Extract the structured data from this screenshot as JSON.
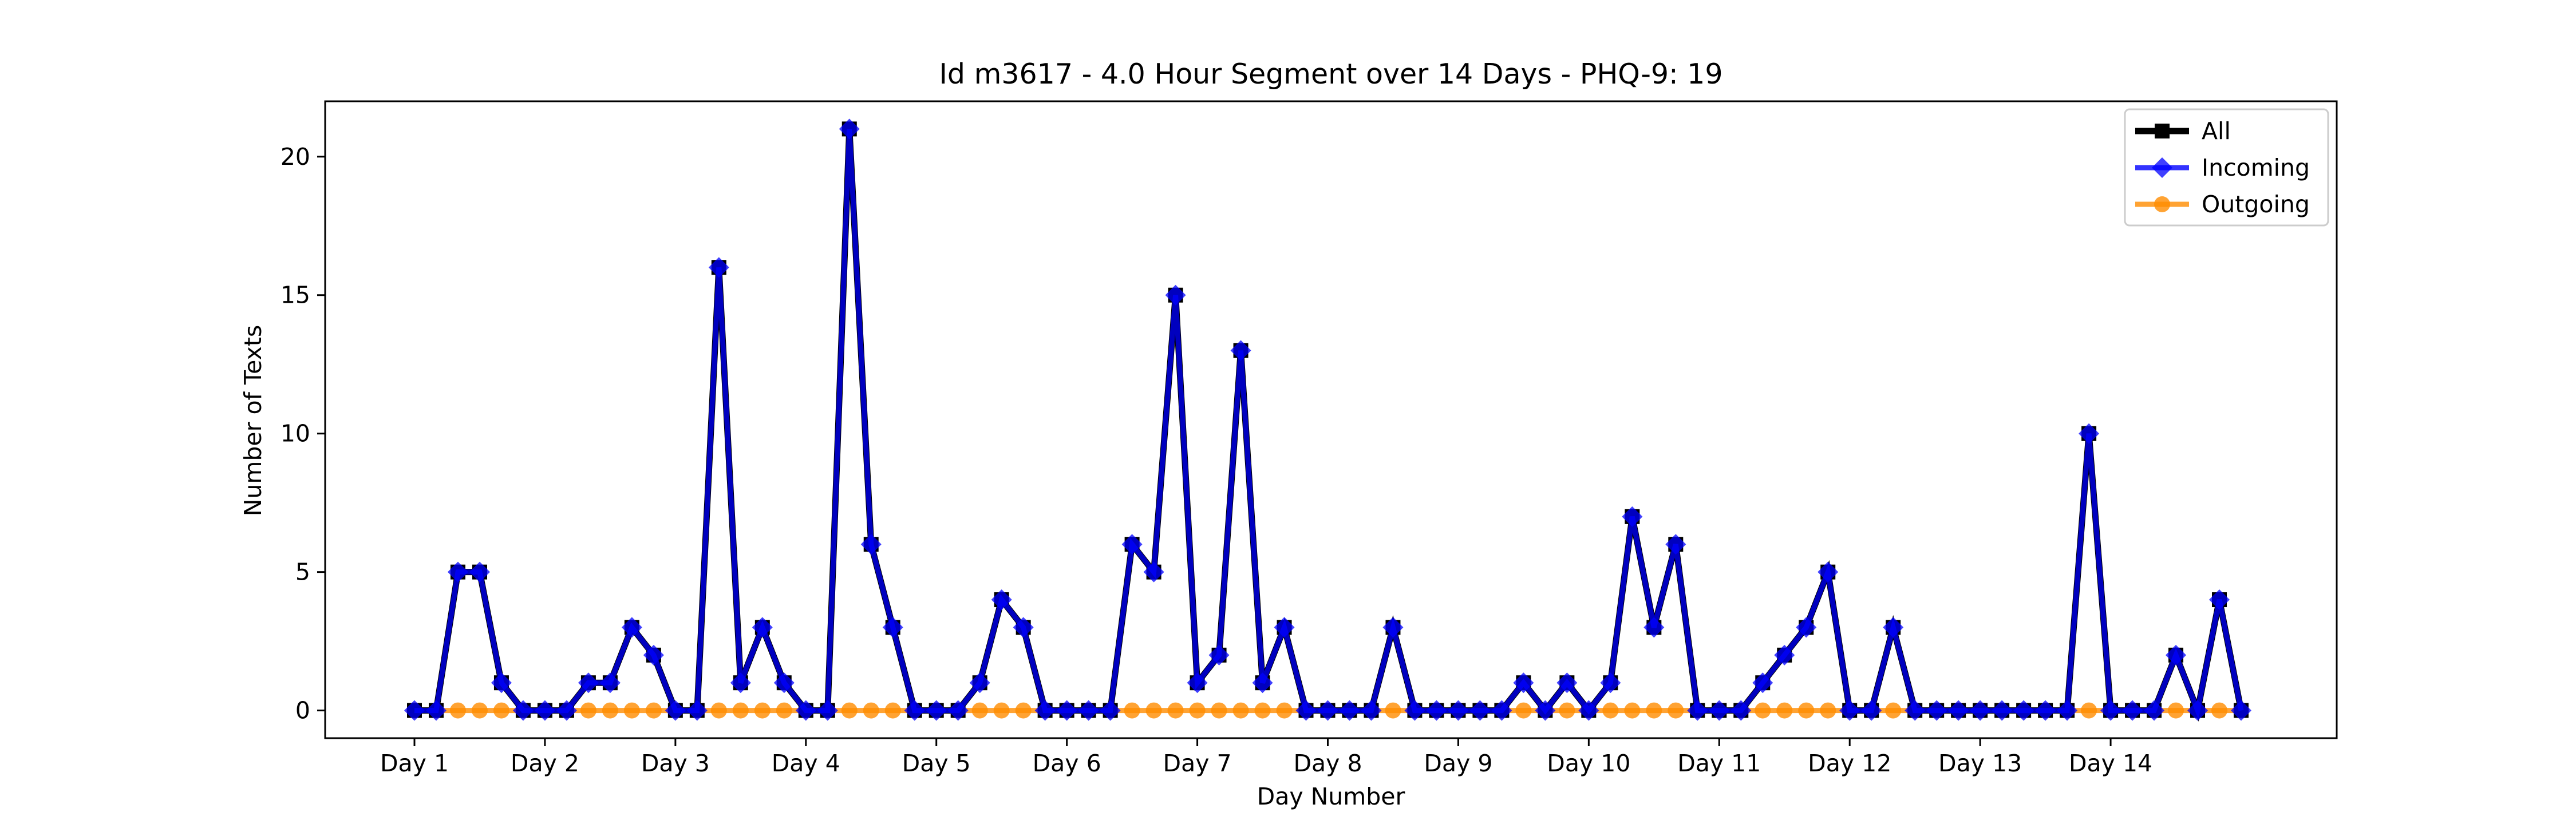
{
  "chart_data": {
    "type": "line",
    "title": "Id m3617 - 4.0 Hour Segment over 14 Days - PHQ-9: 19",
    "xlabel": "Day Number",
    "ylabel": "Number of Texts",
    "x_tick_labels": [
      "Day 1",
      "Day 2",
      "Day 3",
      "Day 4",
      "Day 5",
      "Day 6",
      "Day 7",
      "Day 8",
      "Day 9",
      "Day 10",
      "Day 11",
      "Day 12",
      "Day 13",
      "Day 14"
    ],
    "ylim": [
      -1,
      22
    ],
    "y_ticks": [
      0,
      5,
      10,
      15,
      20
    ],
    "legend_position": "top-right",
    "grid": false,
    "series": [
      {
        "name": "All",
        "color": "#000000",
        "marker": "square",
        "values": [
          0,
          0,
          5,
          5,
          1,
          0,
          0,
          0,
          1,
          1,
          3,
          2,
          0,
          0,
          16,
          1,
          3,
          1,
          0,
          0,
          21,
          6,
          3,
          0,
          0,
          0,
          1,
          4,
          3,
          0,
          0,
          0,
          0,
          6,
          5,
          15,
          1,
          2,
          13,
          1,
          3,
          0,
          0,
          0,
          0,
          3,
          0,
          0,
          0,
          0,
          0,
          1,
          0,
          1,
          0,
          1,
          7,
          3,
          6,
          0,
          0,
          0,
          1,
          2,
          3,
          5,
          0,
          0,
          3,
          0,
          0,
          0,
          0,
          0,
          0,
          0,
          0,
          10,
          0,
          0,
          0,
          2,
          0,
          4,
          0
        ]
      },
      {
        "name": "Incoming",
        "color": "#0000ff",
        "marker": "diamond",
        "values": [
          0,
          0,
          5,
          5,
          1,
          0,
          0,
          0,
          1,
          1,
          3,
          2,
          0,
          0,
          16,
          1,
          3,
          1,
          0,
          0,
          21,
          6,
          3,
          0,
          0,
          0,
          1,
          4,
          3,
          0,
          0,
          0,
          0,
          6,
          5,
          15,
          1,
          2,
          13,
          1,
          3,
          0,
          0,
          0,
          0,
          3,
          0,
          0,
          0,
          0,
          0,
          1,
          0,
          1,
          0,
          1,
          7,
          3,
          6,
          0,
          0,
          0,
          1,
          2,
          3,
          5,
          0,
          0,
          3,
          0,
          0,
          0,
          0,
          0,
          0,
          0,
          0,
          10,
          0,
          0,
          0,
          2,
          0,
          4,
          0
        ]
      },
      {
        "name": "Outgoing",
        "color": "#ff8c00",
        "marker": "circle",
        "values": [
          0,
          0,
          0,
          0,
          0,
          0,
          0,
          0,
          0,
          0,
          0,
          0,
          0,
          0,
          0,
          0,
          0,
          0,
          0,
          0,
          0,
          0,
          0,
          0,
          0,
          0,
          0,
          0,
          0,
          0,
          0,
          0,
          0,
          0,
          0,
          0,
          0,
          0,
          0,
          0,
          0,
          0,
          0,
          0,
          0,
          0,
          0,
          0,
          0,
          0,
          0,
          0,
          0,
          0,
          0,
          0,
          0,
          0,
          0,
          0,
          0,
          0,
          0,
          0,
          0,
          0,
          0,
          0,
          0,
          0,
          0,
          0,
          0,
          0,
          0,
          0,
          0,
          0,
          0,
          0,
          0,
          0,
          0,
          0,
          0
        ]
      }
    ]
  }
}
